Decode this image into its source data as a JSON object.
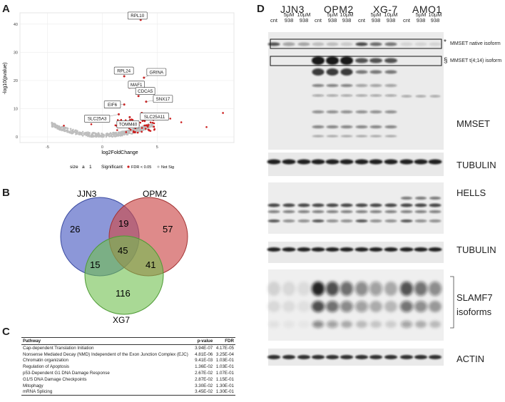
{
  "panels": {
    "a": "A",
    "b": "B",
    "c": "C",
    "d": "D"
  },
  "volcano": {
    "xlabel": "log2FoldChange",
    "ylabel": "-log10(pvalue)",
    "x_ticks": [
      "-5",
      "0",
      "5"
    ],
    "y_ticks": [
      "0",
      "10",
      "20",
      "30",
      "40"
    ],
    "legend": {
      "size_label": "size",
      "size_a": "a",
      "size_1": "1",
      "sig_label": "Significant",
      "fdr_label": "FDR < 0.05",
      "notsig_label": "Not Sig"
    },
    "colors": {
      "sig": "#cc1f1f",
      "notsig": "#bdbdbd"
    },
    "genes": [
      {
        "name": "RPL10",
        "x": 3.5,
        "y": 41.5
      },
      {
        "name": "RPL24",
        "x": 2.0,
        "y": 21.5
      },
      {
        "name": "GRINA",
        "x": 3.8,
        "y": 21.0
      },
      {
        "name": "MAF1",
        "x": 2.5,
        "y": 17.5
      },
      {
        "name": "CDCA5",
        "x": 3.3,
        "y": 14.5
      },
      {
        "name": "SNX17",
        "x": 4.0,
        "y": 12.5
      },
      {
        "name": "EIF6",
        "x": 2.0,
        "y": 11.5
      },
      {
        "name": "SLC25A3",
        "x": 1.5,
        "y": 8.0
      },
      {
        "name": "TOMM40",
        "x": 2.5,
        "y": 7.0
      },
      {
        "name": "SLC25A11",
        "x": 3.6,
        "y": 8.5
      }
    ]
  },
  "venn": {
    "sets": [
      "JJN3",
      "OPM2",
      "XG7"
    ],
    "colors": {
      "JJN3": "#5b6bc7",
      "OPM2": "#cc4b4b",
      "XG7": "#6fbf4f"
    },
    "regions": {
      "jjn3_only": "26",
      "opm2_only": "57",
      "xg7_only": "116",
      "jjn3_opm2": "19",
      "jjn3_xg7": "15",
      "opm2_xg7": "41",
      "all": "45"
    }
  },
  "pathway_table": {
    "headers": [
      "Pathway",
      "p-value",
      "FDR"
    ],
    "rows": [
      [
        "Cap-dependent Translation Initiation",
        "3.94E-07",
        "4.17E-05"
      ],
      [
        "Nonsense Mediated Decay (NMD) Independent of the Exon Junction Complex (EJC)",
        "4.81E-06",
        "3.25E-04"
      ],
      [
        "Chromatin organization",
        "9.41E-03",
        "1.03E-01"
      ],
      [
        "Regulation of Apoptosis",
        "1.36E-02",
        "1.03E-01"
      ],
      [
        "p53-Dependent G1 DNA Damage Response",
        "2.67E-02",
        "1.07E-01"
      ],
      [
        "G1/S DNA Damage Checkpoints",
        "2.87E-02",
        "1.15E-01"
      ],
      [
        "Mitophagy",
        "3.30E-02",
        "1.30E-01"
      ],
      [
        "mRNA Splicing",
        "3.45E-02",
        "1.30E-01"
      ]
    ]
  },
  "western": {
    "groups": [
      "JJN3",
      "OPM2",
      "XG-7",
      "AMO1"
    ],
    "lanes": [
      {
        "l1": "",
        "l2": "cnt"
      },
      {
        "l1": "5µM",
        "l2": "938"
      },
      {
        "l1": "10µM",
        "l2": "938"
      }
    ],
    "annotations": {
      "native_symbol": "*",
      "native_label": "MMSET native isoform",
      "t414_symbol": "§",
      "t414_label": "MMSET t(4;14) isoform"
    },
    "blot_labels": [
      "MMSET",
      "TUBULIN",
      "HELLS",
      "TUBULIN",
      "SLAMF7\nisoforms",
      "ACTIN"
    ]
  }
}
